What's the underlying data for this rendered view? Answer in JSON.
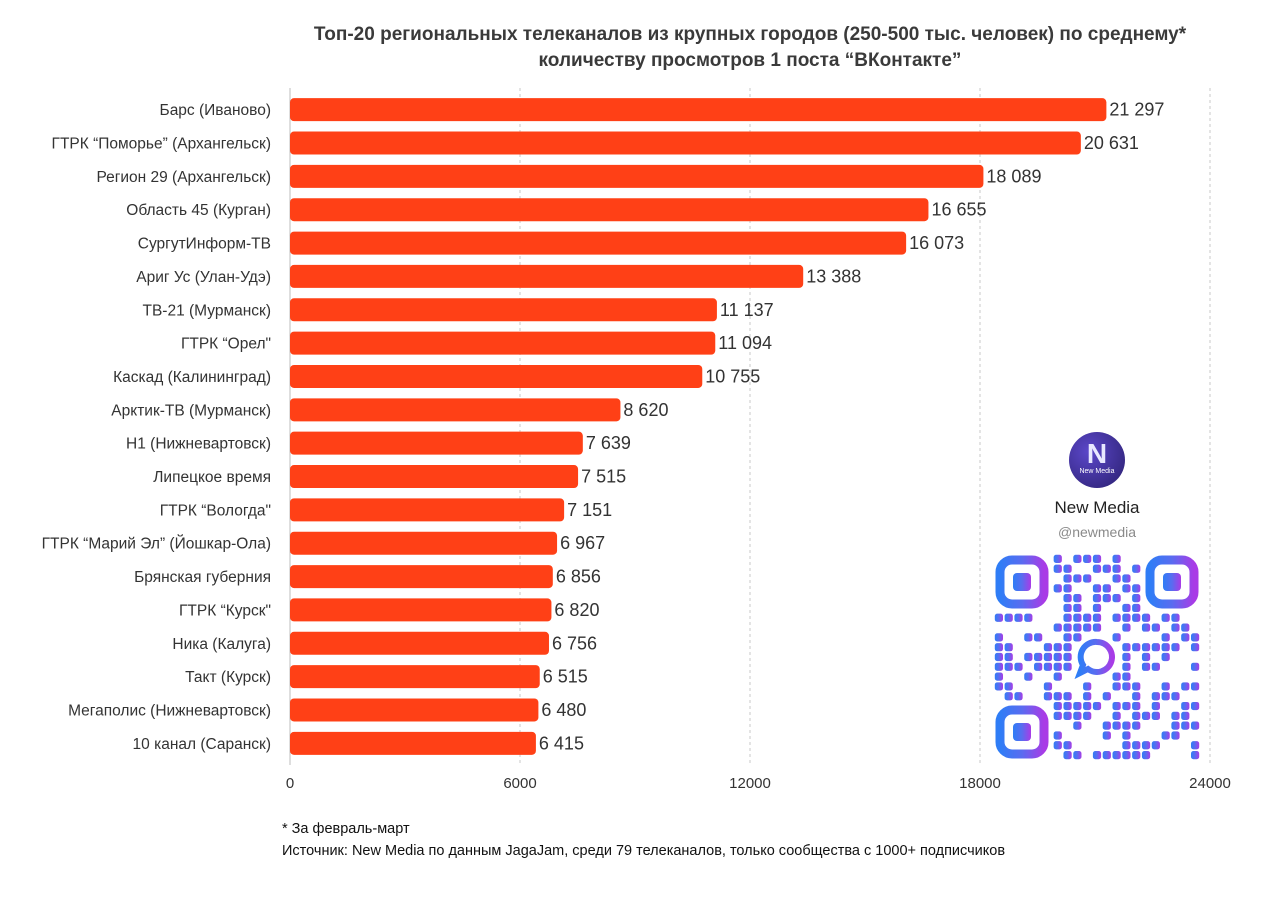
{
  "chart_data": {
    "type": "bar",
    "orientation": "horizontal",
    "title_line1": "Топ-20 региональных телеканалов из крупных городов (250-500 тыс. человек) по среднему*",
    "title_line2": "количеству просмотров 1 поста “ВКонтакте”",
    "categories": [
      "Барс (Иваново)",
      "ГТРК “Поморье” (Архангельск)",
      "Регион 29 (Архангельск)",
      "Область 45 (Курган)",
      "СургутИнформ-ТВ",
      "Ариг Ус (Улан-Удэ)",
      "ТВ-21 (Мурманск)",
      "ГТРК “Орел\"",
      "Каскад (Калининград)",
      "Арктик-ТВ (Мурманск)",
      "Н1 (Нижневартовск)",
      "Липецкое время",
      "ГТРК “Вологда\"",
      "ГТРК “Марий Эл” (Йошкар-Ола)",
      "Брянская губерния",
      "ГТРК “Курск\"",
      "Ника (Калуга)",
      "Такт (Курск)",
      "Мегаполис (Нижневартовск)",
      "10 канал (Саранск)"
    ],
    "values": [
      21297,
      20631,
      18089,
      16655,
      16073,
      13388,
      11137,
      11094,
      10755,
      8620,
      7639,
      7515,
      7151,
      6967,
      6856,
      6820,
      6756,
      6515,
      6480,
      6415
    ],
    "value_labels": [
      "21 297",
      "20 631",
      "18 089",
      "16 655",
      "16 073",
      "13 388",
      "11 137",
      "11 094",
      "10 755",
      "8 620",
      "7 639",
      "7 515",
      "7 151",
      "6 967",
      "6 856",
      "6 820",
      "6 756",
      "6 515",
      "6 480",
      "6 415"
    ],
    "xlim": [
      0,
      24000
    ],
    "xticks": [
      0,
      6000,
      12000,
      18000,
      24000
    ],
    "xtick_labels": [
      "0",
      "6000",
      "12000",
      "18000",
      "24000"
    ],
    "grid": true,
    "bar_color": "#ff4016"
  },
  "brand": {
    "logo_letter": "N",
    "logo_subtext": "New Media",
    "name": "New Media",
    "handle": "@newmedia"
  },
  "footnote": {
    "line1": "* За февраль-март",
    "line2": "Источник: New Media по данным JagaJam, среди 79 телеканалов, только сообщества с 1000+ подписчиков"
  }
}
